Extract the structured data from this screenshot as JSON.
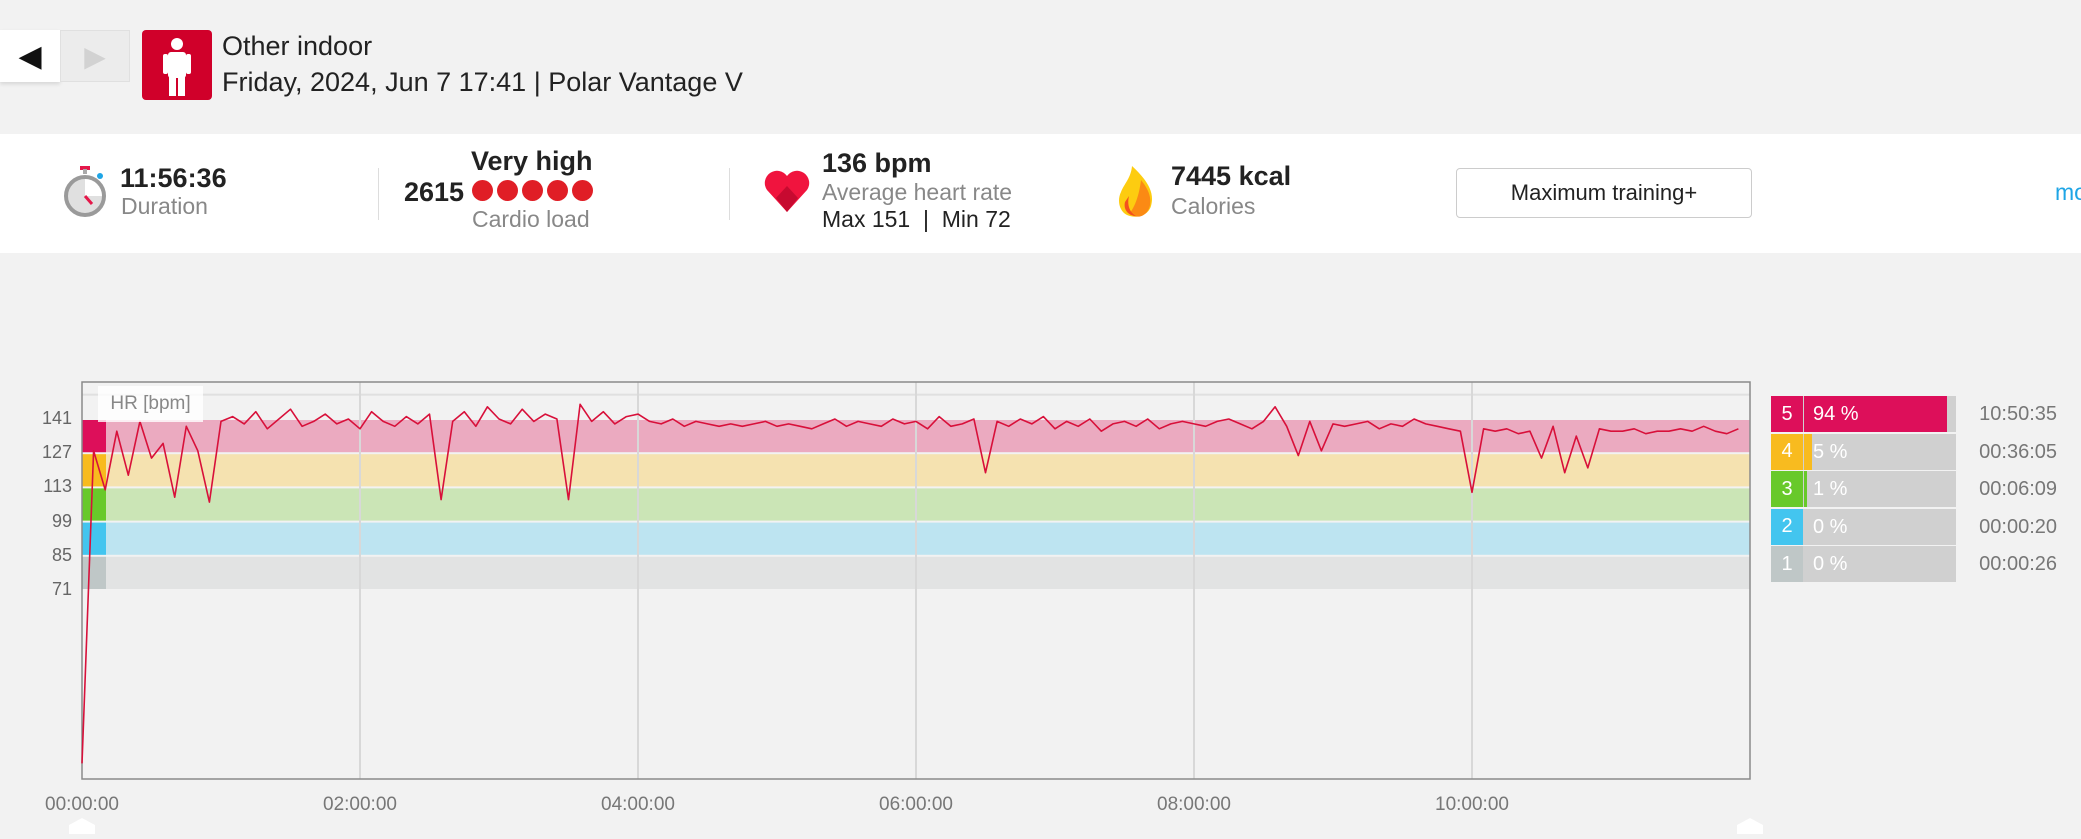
{
  "header": {
    "nav_prev": "◀",
    "nav_next": "▶",
    "sport": "Other indoor",
    "subtitle": "Friday, 2024, Jun 7 17:41 | Polar Vantage V"
  },
  "summary": {
    "duration": {
      "value": "11:56:36",
      "label": "Duration"
    },
    "cardio": {
      "level": "Very high",
      "value": "2615",
      "label": "Cardio load",
      "dots": 5
    },
    "heart_rate": {
      "value": "136 bpm",
      "label": "Average heart rate",
      "maxmin": "Max 151  |  Min 72"
    },
    "calories": {
      "value": "7445 kcal",
      "label": "Calories"
    },
    "benefit_button": "Maximum training+",
    "more_link": "mo"
  },
  "colors": {
    "accent": "#d0002a",
    "hr_line": "#d8103a",
    "link": "#1ea5e6"
  },
  "zones": [
    {
      "zone": "5",
      "percent_label": "94 %",
      "percent": 94,
      "time": "10:50:35",
      "color": "#dd0f5a",
      "band": "#ebaac0"
    },
    {
      "zone": "4",
      "percent_label": "5 %",
      "percent": 5,
      "time": "00:36:05",
      "color": "#f8bb1f",
      "band": "#f5e2b0"
    },
    {
      "zone": "3",
      "percent_label": "1 %",
      "percent": 1,
      "time": "00:06:09",
      "color": "#68c92a",
      "band": "#cbe5b6"
    },
    {
      "zone": "2",
      "percent_label": "0 %",
      "percent": 0,
      "time": "00:00:20",
      "color": "#43c5ef",
      "band": "#bde4f1"
    },
    {
      "zone": "1",
      "percent_label": "0 %",
      "percent": 0,
      "time": "00:00:26",
      "color": "#bfc7c7",
      "band": "#e2e3e3"
    }
  ],
  "chart_data": {
    "type": "line",
    "ylabel": "HR [bpm]",
    "yticks": [
      "141",
      "127",
      "113",
      "99",
      "85",
      "71"
    ],
    "ytick_values": [
      141,
      127,
      113,
      99,
      85,
      71
    ],
    "xticks": [
      "00:00:00",
      "02:00:00",
      "04:00:00",
      "06:00:00",
      "08:00:00",
      "10:00:00"
    ],
    "xtick_hours": [
      0,
      2,
      4,
      6,
      8,
      10
    ],
    "xlim_hours": [
      0,
      12
    ],
    "ylim": [
      -6,
      156
    ],
    "zone_bounds": [
      [
        127,
        141
      ],
      [
        113,
        127
      ],
      [
        99,
        113
      ],
      [
        85,
        99
      ],
      [
        71,
        85
      ]
    ],
    "interval_min": 5,
    "hr": [
      0,
      128,
      112,
      136,
      118,
      140,
      125,
      131,
      109,
      138,
      128,
      107,
      140,
      142,
      139,
      144,
      137,
      141,
      145,
      138,
      140,
      143,
      139,
      141,
      137,
      144,
      140,
      138,
      142,
      139,
      143,
      108,
      140,
      144,
      138,
      146,
      141,
      139,
      145,
      140,
      143,
      141,
      108,
      147,
      140,
      144,
      139,
      142,
      143,
      140,
      139,
      141,
      138,
      140,
      139,
      138,
      139,
      138,
      139,
      140,
      138,
      139,
      138,
      137,
      139,
      141,
      138,
      140,
      139,
      138,
      141,
      139,
      140,
      137,
      142,
      138,
      139,
      141,
      119,
      140,
      138,
      141,
      139,
      142,
      137,
      140,
      138,
      141,
      136,
      139,
      140,
      138,
      141,
      137,
      139,
      140,
      139,
      138,
      140,
      141,
      139,
      137,
      140,
      146,
      138,
      126,
      140,
      128,
      139,
      138,
      139,
      140,
      137,
      139,
      138,
      141,
      139,
      138,
      137,
      136,
      111,
      137,
      136,
      137,
      135,
      136,
      125,
      138,
      119,
      134,
      121,
      137,
      136,
      136,
      137,
      135,
      136,
      136,
      137,
      136,
      138,
      136,
      135,
      137
    ]
  }
}
